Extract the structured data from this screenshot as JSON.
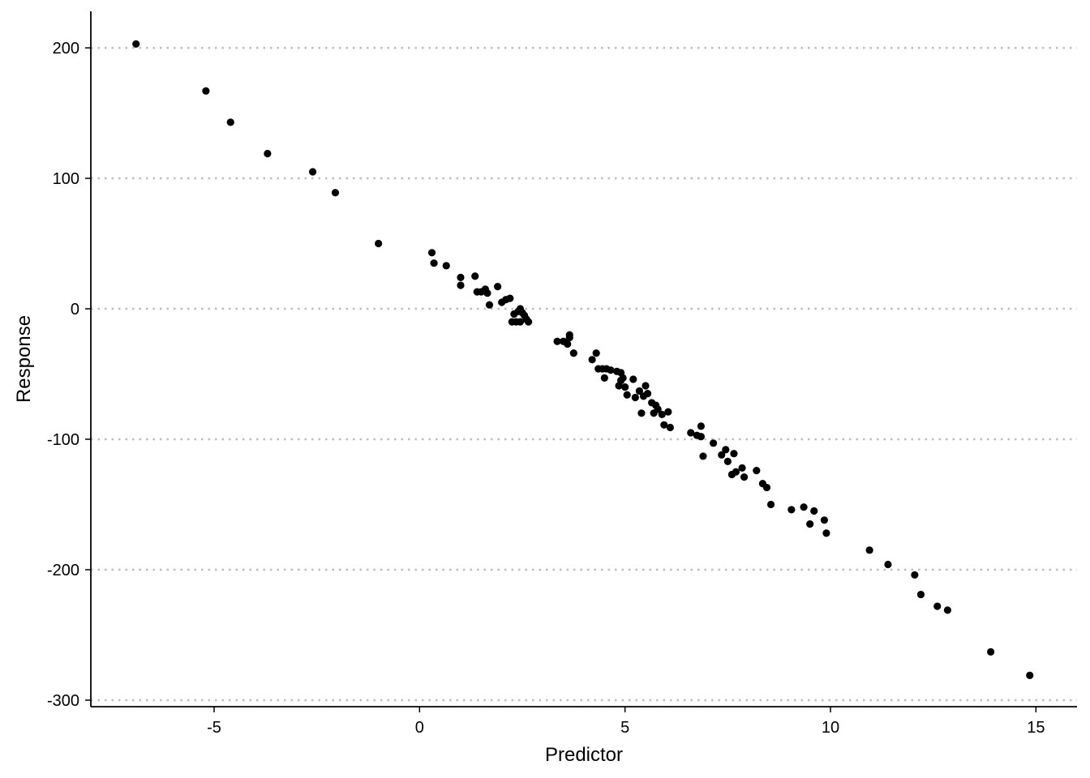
{
  "chart_data": {
    "type": "scatter",
    "title": "",
    "xlabel": "Predictor",
    "ylabel": "Response",
    "xlim": [
      -8,
      16
    ],
    "ylim": [
      -305,
      228
    ],
    "xticks": [
      -5,
      0,
      5,
      10,
      15
    ],
    "yticks": [
      -300,
      -200,
      -100,
      0,
      100,
      200
    ],
    "xtick_labels": [
      "-5",
      "0",
      "5",
      "10",
      "15"
    ],
    "ytick_labels": [
      "-300",
      "-200",
      "-100",
      "0",
      "100",
      "200"
    ],
    "grid": "horizontal-dotted",
    "legend": "none",
    "point_color": "#000000",
    "series": [
      {
        "x": [
          -6.9,
          -5.2,
          -4.6,
          -3.7,
          -2.6,
          -2.05,
          -1.0,
          0.3,
          0.35,
          0.65,
          1.0,
          1.0,
          1.35,
          1.4,
          1.5,
          1.6,
          1.65,
          1.7,
          1.9,
          2.0,
          2.1,
          2.2,
          2.25,
          2.3,
          2.35,
          2.4,
          2.45,
          2.45,
          2.5,
          2.55,
          2.6,
          2.65,
          3.35,
          3.5,
          3.6,
          3.65,
          3.65,
          3.75,
          4.2,
          4.3,
          4.35,
          4.45,
          4.5,
          4.55,
          4.65,
          4.8,
          4.85,
          4.9,
          4.9,
          4.95,
          5.0,
          5.05,
          5.2,
          5.25,
          5.35,
          5.4,
          5.45,
          5.5,
          5.55,
          5.65,
          5.7,
          5.75,
          5.8,
          5.9,
          5.95,
          6.05,
          6.1,
          6.6,
          6.75,
          6.85,
          6.85,
          6.9,
          7.15,
          7.35,
          7.45,
          7.5,
          7.6,
          7.65,
          7.7,
          7.85,
          7.9,
          8.2,
          8.35,
          8.45,
          8.55,
          9.05,
          9.35,
          9.5,
          9.6,
          9.85,
          9.9,
          10.95,
          11.4,
          12.05,
          12.2,
          12.6,
          12.85,
          13.9,
          14.85
        ],
        "y": [
          203,
          167,
          143,
          119,
          105,
          89,
          50,
          43,
          35,
          33,
          24,
          18,
          25,
          13,
          13,
          15,
          12,
          3,
          17,
          5,
          7,
          8,
          -10,
          -4,
          -10,
          -2,
          0,
          -10,
          -3,
          -5,
          -8,
          -10,
          -25,
          -25,
          -27,
          -20,
          -22,
          -34,
          -39,
          -34,
          -46,
          -46,
          -53,
          -46,
          -47,
          -48,
          -59,
          -49,
          -55,
          -53,
          -60,
          -66,
          -54,
          -68,
          -63,
          -80,
          -67,
          -59,
          -65,
          -72,
          -80,
          -74,
          -77,
          -81,
          -89,
          -79,
          -91,
          -95,
          -97,
          -90,
          -98,
          -113,
          -103,
          -112,
          -108,
          -117,
          -127,
          -111,
          -125,
          -122,
          -129,
          -124,
          -134,
          -137,
          -150,
          -154,
          -152,
          -165,
          -155,
          -162,
          -172,
          -185,
          -196,
          -204,
          -219,
          -228,
          -231,
          -263,
          -281
        ]
      }
    ]
  }
}
